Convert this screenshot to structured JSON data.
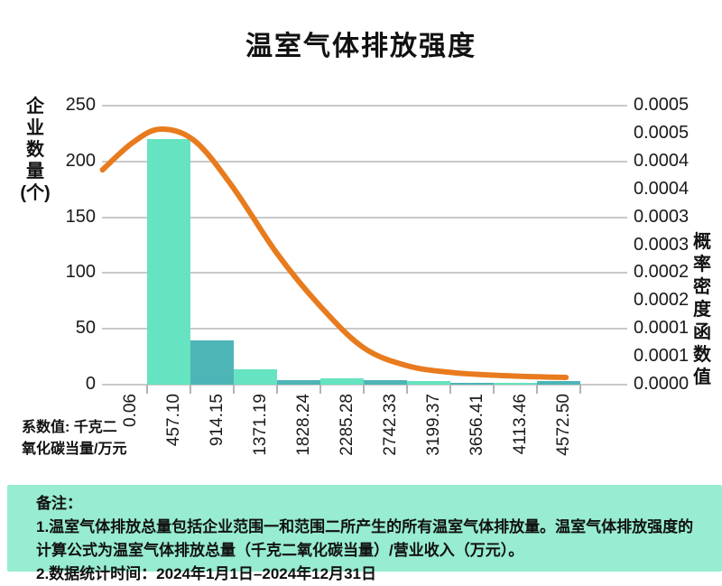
{
  "title": "温室气体排放强度",
  "left_axis": {
    "label": "企业数量(个)",
    "label_lines": [
      "企",
      "业",
      "数",
      "量",
      "(个)"
    ],
    "ticks": [
      "250",
      "200",
      "150",
      "100",
      "50",
      "0"
    ]
  },
  "right_axis": {
    "label": "概率密度函数值",
    "label_lines": [
      "概",
      "率",
      "密",
      "度",
      "函",
      "数",
      "值"
    ],
    "ticks": [
      "0.0005",
      "0.0005",
      "0.0004",
      "0.0004",
      "0.0003",
      "0.0003",
      "0.0002",
      "0.0002",
      "0.0001",
      "0.0001",
      "0.0000"
    ]
  },
  "x_axis": {
    "labels": [
      "0.06",
      "457.10",
      "914.15",
      "1371.19",
      "1828.24",
      "2285.28",
      "2742.33",
      "3199.37",
      "3656.41",
      "4113.46",
      "4572.50"
    ],
    "unit_note_line1": "系数值: 千克二",
    "unit_note_line2": "氧化碳当量/万元"
  },
  "chart_data": {
    "type": "bar",
    "subtype": "histogram-with-density-line",
    "title": "温室气体排放强度",
    "xlabel": "系数值: 千克二氧化碳当量/万元",
    "ylabel_left": "企业数量(个)",
    "ylabel_right": "概率密度函数值",
    "ylim_left": [
      0,
      250
    ],
    "ylim_right": [
      0,
      0.0005
    ],
    "grid": true,
    "legend_position": "none",
    "bin_edges": [
      0.06,
      457.1,
      914.15,
      1371.19,
      1828.24,
      2285.28,
      2742.33,
      3199.37,
      3656.41,
      4113.46,
      4572.5
    ],
    "bar_counts": [
      220,
      40,
      14,
      4,
      6,
      4,
      3,
      2,
      2,
      3
    ],
    "density_curve_points": [
      [
        -470,
        0.000385
      ],
      [
        -150,
        0.000434
      ],
      [
        143,
        0.000458
      ],
      [
        500,
        0.000437
      ],
      [
        900,
        0.000355
      ],
      [
        1371,
        0.000235
      ],
      [
        1830,
        0.00014
      ],
      [
        2285,
        6.6e-05
      ],
      [
        2742,
        3.4e-05
      ],
      [
        3199,
        2.2e-05
      ],
      [
        3656,
        1.7e-05
      ],
      [
        4113,
        1.4e-05
      ],
      [
        4420,
        1.3e-05
      ]
    ]
  },
  "footer": {
    "heading": "备注：",
    "item1": "1.温室气体排放总量包括企业范围一和范围二所产生的所有温室气体排放量。温室气体排放强度的计算公式为温室气体排放总量（千克二氧化碳当量）/营业收入（万元）。",
    "item2": "2.数据统计时间：2024年1月1日–2024年12月31日"
  },
  "colors": {
    "bar_light": "#66e3c0",
    "bar_dark": "#4eb5b7",
    "density_line": "#e87b1e",
    "grid_line": "#c9c9c9",
    "footer_bg": "#97ecd1",
    "text": "#111111"
  }
}
